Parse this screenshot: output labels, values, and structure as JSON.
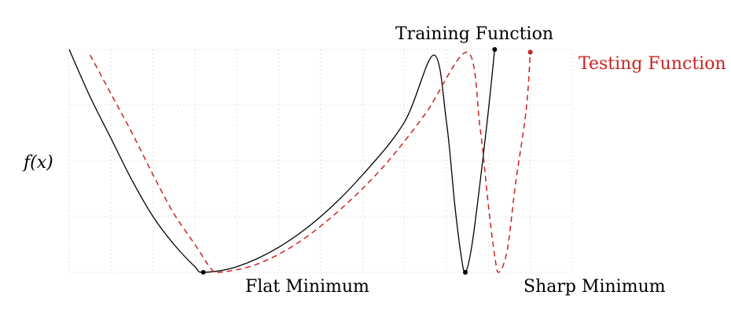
{
  "chart_data": {
    "type": "line",
    "title": "",
    "xlabel": "",
    "ylabel": "f(x)",
    "grid": true,
    "xlim": [
      0,
      12
    ],
    "ylim": [
      0,
      4
    ],
    "series": [
      {
        "name": "Training Function",
        "color": "#000000",
        "style": "solid",
        "points": [
          [
            0,
            4.0
          ],
          [
            0.5,
            3.15
          ],
          [
            1,
            2.4
          ],
          [
            1.5,
            1.65
          ],
          [
            2,
            1.0
          ],
          [
            2.5,
            0.5
          ],
          [
            3,
            0.1
          ],
          [
            3.2,
            0.0
          ],
          [
            4,
            0.1
          ],
          [
            5,
            0.45
          ],
          [
            6,
            1.0
          ],
          [
            7,
            1.75
          ],
          [
            8,
            2.7
          ],
          [
            8.7,
            3.9
          ],
          [
            9,
            2.7
          ],
          [
            9.2,
            1.2
          ],
          [
            9.35,
            0.3
          ],
          [
            9.45,
            0.0
          ],
          [
            9.6,
            0.45
          ],
          [
            9.8,
            1.6
          ],
          [
            10,
            2.9
          ],
          [
            10.15,
            4.0
          ]
        ]
      },
      {
        "name": "Testing Function",
        "color": "#cc2222",
        "style": "dashed",
        "points": [
          [
            0.5,
            3.9
          ],
          [
            1,
            3.2
          ],
          [
            1.5,
            2.5
          ],
          [
            2,
            1.75
          ],
          [
            2.5,
            1.05
          ],
          [
            3,
            0.5
          ],
          [
            3.4,
            0.05
          ],
          [
            3.6,
            0.0
          ],
          [
            4.5,
            0.15
          ],
          [
            5.5,
            0.55
          ],
          [
            6.5,
            1.15
          ],
          [
            7.5,
            1.9
          ],
          [
            8.5,
            2.85
          ],
          [
            9.5,
            3.95
          ],
          [
            9.8,
            2.6
          ],
          [
            10,
            1.2
          ],
          [
            10.15,
            0.3
          ],
          [
            10.25,
            0.0
          ],
          [
            10.45,
            0.4
          ],
          [
            10.65,
            1.6
          ],
          [
            10.9,
            2.9
          ],
          [
            11.0,
            3.95
          ]
        ]
      }
    ],
    "points": [
      {
        "name": "Flat Minimum",
        "x": 3.2,
        "y": 0.0,
        "color": "#000000"
      },
      {
        "name": "Sharp Minimum",
        "x": 9.45,
        "y": 0.0,
        "color": "#000000"
      },
      {
        "name": "training-end",
        "x": 10.15,
        "y": 4.0,
        "color": "#000000"
      },
      {
        "name": "testing-end",
        "x": 11.0,
        "y": 3.95,
        "color": "#cc2222"
      }
    ],
    "annotations": {
      "training_label": "Training Function",
      "testing_label": "Testing Function",
      "flat_label": "Flat Minimum",
      "sharp_label": "Sharp Minimum"
    }
  }
}
